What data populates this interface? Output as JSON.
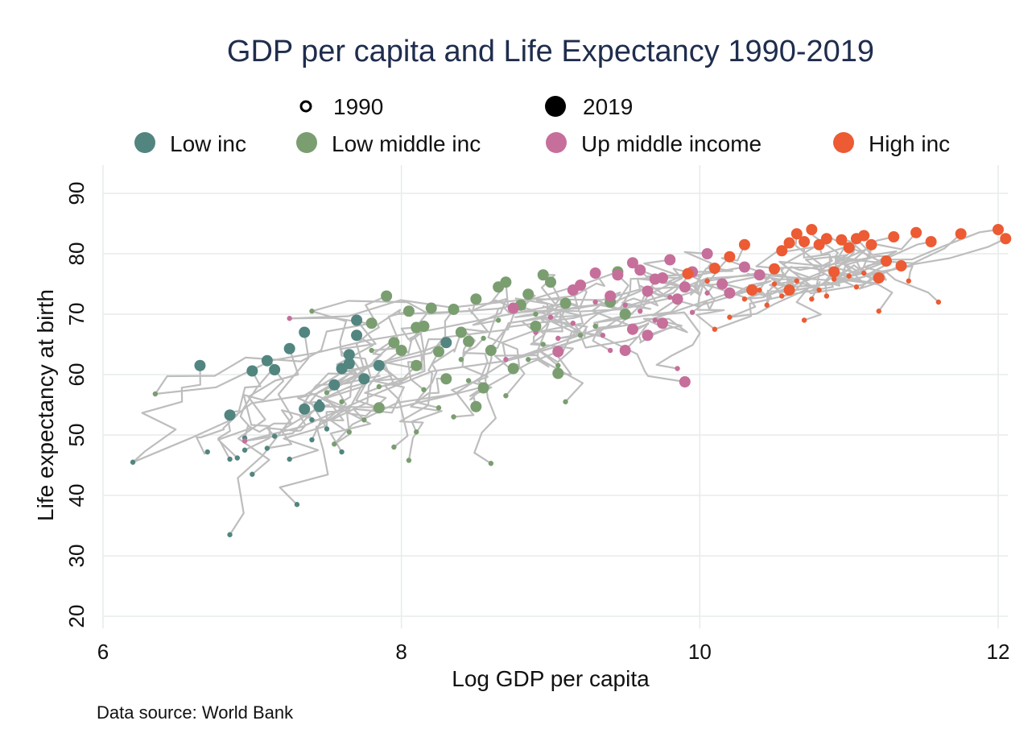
{
  "chart_data": {
    "type": "scatter",
    "title": "GDP per capita and Life Expectancy 1990-2019",
    "xlabel": "Log GDP per capita",
    "ylabel": "Life expectancy at birth",
    "source": "Data source: World Bank",
    "xlim": [
      6,
      12
    ],
    "ylim": [
      20,
      90
    ],
    "xticks": [
      6,
      8,
      10,
      12
    ],
    "yticks": [
      20,
      30,
      40,
      50,
      60,
      70,
      80,
      90
    ],
    "grid": true,
    "legend_position": "top",
    "size_legend": [
      {
        "label": "1990",
        "marker": "small-hollow"
      },
      {
        "label": "2019",
        "marker": "large-filled"
      }
    ],
    "series": [
      {
        "name": "Low inc",
        "color": "#528580",
        "points_1990": [
          [
            6.2,
            45.5
          ],
          [
            6.7,
            47.2
          ],
          [
            6.85,
            46
          ],
          [
            6.9,
            46.2
          ],
          [
            6.95,
            47.5
          ],
          [
            7.0,
            43.5
          ],
          [
            6.85,
            33.5
          ],
          [
            6.95,
            49.5
          ],
          [
            7.15,
            49.8
          ],
          [
            7.3,
            38.5
          ],
          [
            7.25,
            46
          ],
          [
            7.1,
            47.8
          ],
          [
            7.4,
            49.2
          ],
          [
            7.5,
            51
          ],
          [
            7.6,
            47.2
          ],
          [
            7.45,
            55.5
          ],
          [
            7.4,
            52.5
          ]
        ],
        "points_2019": [
          [
            6.65,
            61.5
          ],
          [
            6.85,
            53.3
          ],
          [
            7.0,
            60.6
          ],
          [
            7.1,
            62.3
          ],
          [
            7.15,
            60.8
          ],
          [
            7.25,
            64.3
          ],
          [
            7.35,
            67
          ],
          [
            7.35,
            54.3
          ],
          [
            7.45,
            54.7
          ],
          [
            7.55,
            58.3
          ],
          [
            7.6,
            61
          ],
          [
            7.65,
            61.8
          ],
          [
            7.65,
            63.3
          ],
          [
            7.7,
            66.5
          ],
          [
            7.7,
            69
          ],
          [
            7.75,
            59.3
          ],
          [
            7.85,
            61.5
          ],
          [
            8.3,
            65.3
          ]
        ]
      },
      {
        "name": "Low middle inc",
        "color": "#7a9e70",
        "points_1990": [
          [
            6.35,
            56.8
          ],
          [
            7.4,
            70.5
          ],
          [
            7.5,
            57
          ],
          [
            7.55,
            48.5
          ],
          [
            7.6,
            55.5
          ],
          [
            7.65,
            50.5
          ],
          [
            7.75,
            52.5
          ],
          [
            7.8,
            64
          ],
          [
            7.85,
            58
          ],
          [
            7.95,
            48
          ],
          [
            8.05,
            45.8
          ],
          [
            8.1,
            50.5
          ],
          [
            8.15,
            57.5
          ],
          [
            8.25,
            54.5
          ],
          [
            8.35,
            53
          ],
          [
            8.4,
            62.5
          ],
          [
            8.45,
            59
          ],
          [
            8.55,
            66
          ],
          [
            8.6,
            45.3
          ],
          [
            8.65,
            69
          ],
          [
            8.7,
            56.5
          ],
          [
            8.85,
            62.5
          ],
          [
            8.9,
            70
          ],
          [
            8.95,
            65
          ],
          [
            9.05,
            61.5
          ],
          [
            9.2,
            66.5
          ],
          [
            9.1,
            55.5
          ],
          [
            9.3,
            68
          ]
        ],
        "points_2019": [
          [
            7.8,
            68.5
          ],
          [
            7.85,
            54.5
          ],
          [
            7.9,
            73
          ],
          [
            7.95,
            65.3
          ],
          [
            8.05,
            70.5
          ],
          [
            8.0,
            64
          ],
          [
            8.1,
            61.5
          ],
          [
            8.1,
            67.8
          ],
          [
            8.15,
            68
          ],
          [
            8.2,
            71
          ],
          [
            8.25,
            63.8
          ],
          [
            8.3,
            59.3
          ],
          [
            8.35,
            70.8
          ],
          [
            8.4,
            67
          ],
          [
            8.45,
            65.5
          ],
          [
            8.5,
            72.5
          ],
          [
            8.5,
            54.7
          ],
          [
            8.55,
            57.8
          ],
          [
            8.6,
            64
          ],
          [
            8.65,
            74.5
          ],
          [
            8.7,
            75.3
          ],
          [
            8.75,
            61
          ],
          [
            8.8,
            71.5
          ],
          [
            8.85,
            73.3
          ],
          [
            8.9,
            68
          ],
          [
            8.95,
            76.5
          ],
          [
            9.0,
            75.3
          ],
          [
            9.05,
            60.2
          ],
          [
            9.1,
            71.8
          ],
          [
            9.4,
            72
          ],
          [
            9.45,
            77
          ],
          [
            9.5,
            70
          ]
        ]
      },
      {
        "name": "Up middle income",
        "color": "#c66f9b",
        "points_1990": [
          [
            7.25,
            69.3
          ],
          [
            6.95,
            49
          ],
          [
            8.6,
            64.5
          ],
          [
            8.7,
            62.5
          ],
          [
            8.9,
            67
          ],
          [
            9.0,
            69.5
          ],
          [
            9.05,
            66
          ],
          [
            9.15,
            68.5
          ],
          [
            9.3,
            72
          ],
          [
            9.35,
            66.5
          ],
          [
            9.4,
            64
          ],
          [
            9.5,
            71.5
          ],
          [
            9.55,
            67
          ],
          [
            9.6,
            70.5
          ],
          [
            9.7,
            69
          ],
          [
            9.8,
            72.8
          ],
          [
            9.85,
            61
          ],
          [
            9.9,
            74.5
          ],
          [
            9.95,
            70.3
          ],
          [
            10.05,
            73.5
          ]
        ],
        "points_2019": [
          [
            8.75,
            71
          ],
          [
            9.05,
            63.8
          ],
          [
            9.15,
            74
          ],
          [
            9.2,
            74.8
          ],
          [
            9.3,
            76.8
          ],
          [
            9.4,
            73
          ],
          [
            9.45,
            76.5
          ],
          [
            9.5,
            64
          ],
          [
            9.55,
            67.5
          ],
          [
            9.55,
            78.5
          ],
          [
            9.6,
            77.3
          ],
          [
            9.65,
            73.8
          ],
          [
            9.65,
            66.5
          ],
          [
            9.7,
            75.8
          ],
          [
            9.75,
            68.5
          ],
          [
            9.8,
            79
          ],
          [
            9.85,
            72.5
          ],
          [
            9.9,
            74.5
          ],
          [
            9.95,
            77
          ],
          [
            10.05,
            80
          ],
          [
            10.15,
            75
          ],
          [
            10.2,
            73.5
          ],
          [
            10.3,
            77.8
          ],
          [
            10.35,
            74
          ],
          [
            10.4,
            76.5
          ],
          [
            9.9,
            58.8
          ],
          [
            9.75,
            76
          ]
        ]
      },
      {
        "name": "High inc",
        "color": "#ec5b33",
        "points_1990": [
          [
            10.05,
            75.5
          ],
          [
            10.1,
            67.5
          ],
          [
            10.2,
            69.5
          ],
          [
            10.3,
            72.5
          ],
          [
            10.4,
            74
          ],
          [
            10.45,
            71.5
          ],
          [
            10.55,
            73
          ],
          [
            10.6,
            74.5
          ],
          [
            10.65,
            75.5
          ],
          [
            10.7,
            69
          ],
          [
            10.75,
            72.5
          ],
          [
            10.85,
            73
          ],
          [
            10.9,
            75.8
          ],
          [
            11.0,
            76.3
          ],
          [
            11.1,
            76.8
          ],
          [
            11.2,
            70.5
          ],
          [
            11.4,
            75.5
          ],
          [
            11.6,
            72
          ],
          [
            10.5,
            75
          ],
          [
            10.8,
            74
          ],
          [
            11.05,
            74.5
          ]
        ],
        "points_2019": [
          [
            9.92,
            76.7
          ],
          [
            10.1,
            77.6
          ],
          [
            10.2,
            79.5
          ],
          [
            10.3,
            81.5
          ],
          [
            10.35,
            74
          ],
          [
            10.5,
            77.5
          ],
          [
            10.55,
            80.5
          ],
          [
            10.6,
            81.8
          ],
          [
            10.6,
            74
          ],
          [
            10.65,
            83.3
          ],
          [
            10.7,
            82
          ],
          [
            10.75,
            84
          ],
          [
            10.8,
            81.5
          ],
          [
            10.85,
            82.5
          ],
          [
            10.9,
            77
          ],
          [
            10.95,
            82.3
          ],
          [
            11.0,
            81
          ],
          [
            11.05,
            82.5
          ],
          [
            11.1,
            83
          ],
          [
            11.15,
            81.5
          ],
          [
            11.2,
            76
          ],
          [
            11.25,
            78.8
          ],
          [
            11.3,
            82.8
          ],
          [
            11.35,
            78
          ],
          [
            11.45,
            83.5
          ],
          [
            11.55,
            82
          ],
          [
            11.75,
            83.3
          ],
          [
            12.0,
            84
          ],
          [
            12.05,
            82.5
          ]
        ]
      }
    ]
  }
}
